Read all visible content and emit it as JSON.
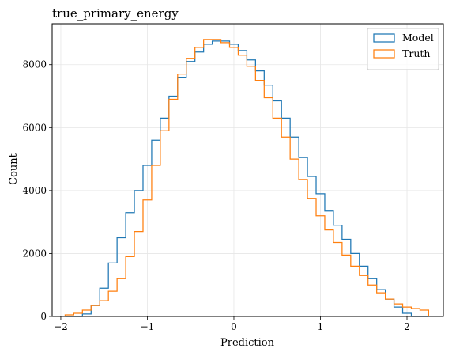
{
  "chart_data": {
    "type": "histogram",
    "title": "true_primary_energy",
    "xlabel": "Prediction",
    "ylabel": "Count",
    "xlim": [
      -2.1,
      2.42
    ],
    "ylim": [
      0,
      9300
    ],
    "xticks": [
      -2,
      -1,
      0,
      1,
      2
    ],
    "yticks": [
      0,
      2000,
      4000,
      6000,
      8000
    ],
    "xtick_labels": [
      "−2",
      "−1",
      "0",
      "1",
      "2"
    ],
    "ytick_labels": [
      "0",
      "2000",
      "4000",
      "6000",
      "8000"
    ],
    "grid": true,
    "legend_position": "top-right",
    "colors": {
      "Model": "#1f77b4",
      "Truth": "#ff7f0e"
    },
    "series": [
      {
        "name": "Model",
        "x": [
          -1.9,
          -1.8,
          -1.7,
          -1.6,
          -1.5,
          -1.4,
          -1.3,
          -1.2,
          -1.1,
          -1.0,
          -0.9,
          -0.8,
          -0.7,
          -0.6,
          -0.5,
          -0.4,
          -0.3,
          -0.2,
          -0.1,
          0.0,
          0.1,
          0.2,
          0.3,
          0.4,
          0.5,
          0.6,
          0.7,
          0.8,
          0.9,
          1.0,
          1.1,
          1.2,
          1.3,
          1.4,
          1.5,
          1.6,
          1.7,
          1.8,
          1.9,
          2.0,
          2.1,
          2.2
        ],
        "values": [
          0,
          0,
          80,
          350,
          900,
          1700,
          2500,
          3300,
          4000,
          4800,
          5600,
          6300,
          7000,
          7600,
          8100,
          8400,
          8650,
          8750,
          8750,
          8650,
          8450,
          8150,
          7800,
          7350,
          6850,
          6300,
          5700,
          5050,
          4450,
          3900,
          3350,
          2900,
          2450,
          2000,
          1600,
          1200,
          850,
          550,
          300,
          100,
          0,
          0
        ]
      },
      {
        "name": "Truth",
        "x": [
          -1.9,
          -1.8,
          -1.7,
          -1.6,
          -1.5,
          -1.4,
          -1.3,
          -1.2,
          -1.1,
          -1.0,
          -0.9,
          -0.8,
          -0.7,
          -0.6,
          -0.5,
          -0.4,
          -0.3,
          -0.2,
          -0.1,
          0.0,
          0.1,
          0.2,
          0.3,
          0.4,
          0.5,
          0.6,
          0.7,
          0.8,
          0.9,
          1.0,
          1.1,
          1.2,
          1.3,
          1.4,
          1.5,
          1.6,
          1.7,
          1.8,
          1.9,
          2.0,
          2.1,
          2.2
        ],
        "values": [
          50,
          100,
          200,
          350,
          500,
          800,
          1200,
          1900,
          2700,
          3700,
          4800,
          5900,
          6900,
          7700,
          8200,
          8550,
          8800,
          8800,
          8700,
          8550,
          8300,
          7950,
          7500,
          6950,
          6300,
          5700,
          5000,
          4350,
          3750,
          3200,
          2750,
          2350,
          1950,
          1600,
          1300,
          1000,
          750,
          550,
          400,
          300,
          250,
          200
        ]
      }
    ]
  }
}
